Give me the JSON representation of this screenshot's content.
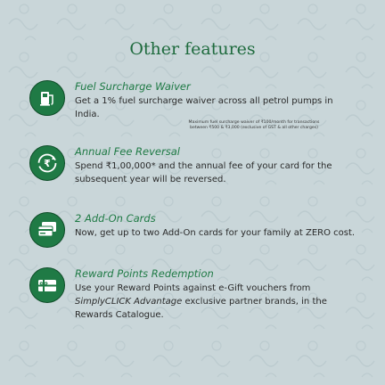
{
  "title": "Other features",
  "features": [
    {
      "icon": "fuel-pump-icon",
      "title": "Fuel Surcharge Waiver",
      "desc": "Get a 1% fuel surcharge waiver across all petrol pumps in India.",
      "note_line1": "Maximum fuel surcharge waiver of ₹100/month for transactions",
      "note_line2": "between ₹500 & ₹3,000 (exclusive of GST & all other charges)"
    },
    {
      "icon": "rupee-cycle-icon",
      "title": "Annual Fee Reversal",
      "desc": "Spend ₹1,00,000* and the annual fee of your card for the subsequent year will be reversed."
    },
    {
      "icon": "cards-icon",
      "title": "2 Add-On Cards",
      "desc": "Now, get up to two Add-On cards for your family at ZERO cost."
    },
    {
      "icon": "gift-card-icon",
      "title": "Reward Points Redemption",
      "desc_pre": "Use your Reward Points against e-Gift vouchers from ",
      "desc_ital": "SimplyCLICK Advantage",
      "desc_post": " exclusive partner brands, in the Rewards Catalogue."
    }
  ],
  "colors": {
    "accent": "#1f7a45",
    "background": "#c9d6d9",
    "title": "#1f6b3e"
  }
}
